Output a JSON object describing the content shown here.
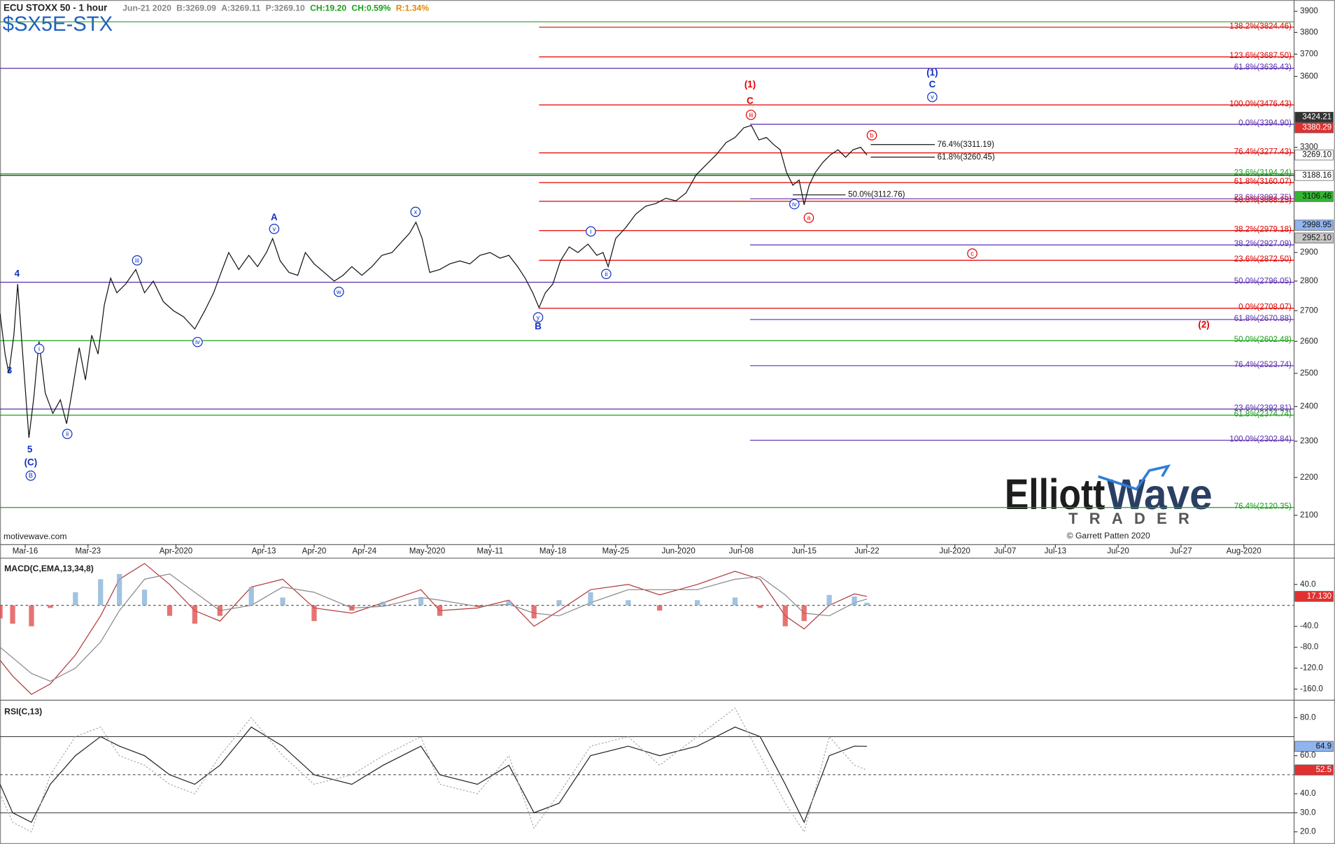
{
  "chart_data": [
    {
      "type": "line",
      "title": "ECU STOXX 50 - 1 hour",
      "subtitle": "$SX5E-STX",
      "quote": [
        {
          "text": "Jun-21 2020",
          "color": "#888"
        },
        {
          "text": "B:3269.09",
          "color": "#888"
        },
        {
          "text": "A:3269.11",
          "color": "#888"
        },
        {
          "text": "P:3269.10",
          "color": "#888"
        },
        {
          "text": "CH:19.20",
          "color": "#1aa01a"
        },
        {
          "text": "CH:0.59%",
          "color": "#1aa01a"
        },
        {
          "text": "R:1.34%",
          "color": "#e08a00"
        }
      ],
      "source": "motivewave.com",
      "logo": {
        "word1": "Elliott",
        "word2": "Wave",
        "sub": "TRADER",
        "credit": "© Garrett Patten 2020"
      },
      "log_scale": true,
      "color": "#111",
      "xlim": [
        -2,
        101
      ],
      "xticks": [
        {
          "value": 0,
          "label": "Mar-16"
        },
        {
          "value": 5,
          "label": "Mar-23"
        },
        {
          "value": 12,
          "label": "Apr-2020"
        },
        {
          "value": 19,
          "label": "Apr-13"
        },
        {
          "value": 23,
          "label": "Apr-20"
        },
        {
          "value": 27,
          "label": "Apr-24"
        },
        {
          "value": 32,
          "label": "May-2020"
        },
        {
          "value": 37,
          "label": "May-11"
        },
        {
          "value": 42,
          "label": "May-18"
        },
        {
          "value": 47,
          "label": "May-25"
        },
        {
          "value": 52,
          "label": "Jun-2020"
        },
        {
          "value": 57,
          "label": "Jun-08"
        },
        {
          "value": 62,
          "label": "Jun-15"
        },
        {
          "value": 67,
          "label": "Jun-22"
        },
        {
          "value": 74,
          "label": "Jul-2020"
        },
        {
          "value": 78,
          "label": "Jul-07"
        },
        {
          "value": 82,
          "label": "Jul-13"
        },
        {
          "value": 87,
          "label": "Jul-20"
        },
        {
          "value": 92,
          "label": "Jul-27"
        },
        {
          "value": 97,
          "label": "Aug-2020"
        }
      ],
      "ylim": [
        2026,
        3938
      ],
      "yticks": [
        2100,
        2200,
        2300,
        2400,
        2500,
        2600,
        2700,
        2800,
        2900,
        3300,
        3600,
        3700,
        3800,
        3900
      ],
      "x": [
        -2,
        -1.6,
        -1.3,
        -0.9,
        -0.6,
        -0.2,
        0.3,
        0.7,
        1.1,
        1.6,
        2.2,
        2.8,
        3.3,
        3.8,
        4.3,
        4.8,
        5.3,
        5.8,
        6.3,
        6.8,
        7.3,
        8,
        8.8,
        9.5,
        10.2,
        11,
        11.8,
        12.6,
        13.5,
        14.3,
        15,
        15.6,
        16.2,
        17,
        17.8,
        18.5,
        19.2,
        19.7,
        20.3,
        21,
        21.7,
        22.3,
        23,
        23.8,
        24.6,
        25.3,
        26,
        26.8,
        27.6,
        28.4,
        29.2,
        30,
        30.6,
        31.1,
        31.6,
        32.2,
        33,
        33.8,
        34.6,
        35.4,
        36.2,
        37,
        37.8,
        38.5,
        39.2,
        39.8,
        40.4,
        40.9,
        41.4,
        42,
        42.6,
        43.3,
        44,
        44.8,
        45.5,
        46,
        46.4,
        47,
        47.8,
        48.6,
        49.4,
        50.2,
        51,
        51.8,
        52.6,
        53.4,
        54.2,
        55,
        55.8,
        56.5,
        57.2,
        57.8,
        58.4,
        59,
        59.6,
        60.1,
        60.6,
        61.1,
        61.6,
        62,
        62.4,
        62.9,
        63.5,
        64.1,
        64.7,
        65.3,
        65.9,
        66.5,
        67
      ],
      "values": [
        2690,
        2560,
        2500,
        2620,
        2790,
        2560,
        2310,
        2430,
        2600,
        2440,
        2380,
        2420,
        2350,
        2460,
        2580,
        2480,
        2620,
        2560,
        2720,
        2810,
        2760,
        2790,
        2840,
        2760,
        2800,
        2730,
        2700,
        2680,
        2640,
        2700,
        2760,
        2830,
        2900,
        2840,
        2890,
        2850,
        2900,
        2950,
        2870,
        2830,
        2820,
        2900,
        2860,
        2830,
        2800,
        2820,
        2850,
        2820,
        2850,
        2890,
        2900,
        2940,
        2970,
        3010,
        2950,
        2830,
        2840,
        2860,
        2870,
        2860,
        2890,
        2900,
        2880,
        2890,
        2850,
        2810,
        2760,
        2710,
        2760,
        2790,
        2870,
        2920,
        2900,
        2930,
        2890,
        2900,
        2850,
        2950,
        2990,
        3040,
        3070,
        3080,
        3100,
        3090,
        3120,
        3190,
        3230,
        3270,
        3320,
        3340,
        3380,
        3390,
        3330,
        3340,
        3310,
        3290,
        3200,
        3150,
        3170,
        3075,
        3150,
        3200,
        3240,
        3270,
        3290,
        3260,
        3290,
        3300,
        3269.1
      ],
      "hlines": [
        {
          "value": 3850,
          "color": "#2a9a2a"
        }
      ],
      "fib_levels": [
        {
          "label": "138.2%(3824.46)",
          "value": 3824.46,
          "color": "#e00000",
          "x0": 40.9
        },
        {
          "label": "123.6%(3687.50)",
          "value": 3687.5,
          "color": "#e00000",
          "x0": 40.9
        },
        {
          "label": "61.8%(3636.43)",
          "value": 3636.43,
          "color": "#5a2db0"
        },
        {
          "label": "100.0%(3476.43)",
          "value": 3476.43,
          "color": "#e00000",
          "x0": 40.9
        },
        {
          "label": "0.0%(3394.90)",
          "value": 3394.9,
          "color": "#5a2db0",
          "x0": 57.7
        },
        {
          "label": "76.4%(3311.19)",
          "value": 3311.19,
          "color": "#111",
          "x0": 67.3,
          "x1": 72.4
        },
        {
          "label": "76.4%(3277.43)",
          "value": 3277.43,
          "color": "#e00000",
          "x0": 40.9
        },
        {
          "label": "61.8%(3260.45)",
          "value": 3260.45,
          "color": "#111",
          "x0": 67.3,
          "x1": 72.4
        },
        {
          "label": "23.6%(3194.24)",
          "value": 3194.24,
          "color": "#1aa01a"
        },
        {
          "label": "61.8%(3160.07)",
          "value": 3160.07,
          "color": "#e00000",
          "x0": 40.9
        },
        {
          "label": "50.0%(3112.76)",
          "value": 3112.76,
          "color": "#111",
          "x0": 61.1,
          "x1": 65.3
        },
        {
          "label": "23.6%(3097.75)",
          "value": 3097.75,
          "color": "#5a2db0",
          "x0": 57.7
        },
        {
          "label": "50.0%(3088.25)",
          "value": 3088.25,
          "color": "#e00000",
          "x0": 40.9
        },
        {
          "label": "38.2%(2979.18)",
          "value": 2979.18,
          "color": "#e00000",
          "x0": 40.9
        },
        {
          "label": "38.2%(2927.09)",
          "value": 2927.09,
          "color": "#5a2db0",
          "x0": 57.7
        },
        {
          "label": "23.6%(2872.50)",
          "value": 2872.5,
          "color": "#e00000",
          "x0": 40.9
        },
        {
          "label": "50.0%(2796.05)",
          "value": 2796.05,
          "color": "#5a2db0"
        },
        {
          "label": "0.0%(2708.07)",
          "value": 2708.07,
          "color": "#e00000",
          "x0": 40.9
        },
        {
          "label": "61.8%(2670.88)",
          "value": 2670.88,
          "color": "#5a2db0",
          "x0": 57.7
        },
        {
          "label": "50.0%(2602.48)",
          "value": 2602.48,
          "color": "#1aa01a"
        },
        {
          "label": "76.4%(2523.74)",
          "value": 2523.74,
          "color": "#5a2db0",
          "x0": 57.7
        },
        {
          "label": "23.6%(2392.81)",
          "value": 2392.81,
          "color": "#5a2db0"
        },
        {
          "label": "61.8%(2374.74)",
          "value": 2374.74,
          "color": "#1aa01a"
        },
        {
          "label": "100.0%(2302.84)",
          "value": 2302.84,
          "color": "#5a2db0",
          "x0": 57.7
        },
        {
          "label": "76.4%(2120.35)",
          "value": 2120.35,
          "color": "#1aa01a"
        }
      ],
      "price_tags": [
        {
          "label": "3424.21",
          "value": 3424.21,
          "bg": "#333",
          "fg": "#fff"
        },
        {
          "label": "3380.29",
          "value": 3380.29,
          "bg": "#e03030",
          "fg": "#fff"
        },
        {
          "label": "3269.10",
          "value": 3269.1,
          "bg": "#fff",
          "fg": "#111"
        },
        {
          "label": "3188.16",
          "value": 3188.16,
          "bg": "#fff",
          "fg": "#111",
          "line": true
        },
        {
          "label": "3106.46",
          "value": 3106.46,
          "bg": "#33b533",
          "fg": "#111"
        },
        {
          "label": "2998.95",
          "value": 2998.95,
          "bg": "#8fb4ee",
          "fg": "#111"
        },
        {
          "label": "2952.10",
          "value": 2952.1,
          "bg": "#c8c8c8",
          "fg": "#111"
        }
      ],
      "annotations": [
        {
          "text": "(1)",
          "color": "#e00000"
        },
        {
          "text": "C",
          "color": "#e00000"
        },
        {
          "text": "iii",
          "color": "#e00000",
          "circled": true
        },
        {
          "text": "b",
          "color": "#e00000",
          "circled": true
        },
        {
          "text": "a",
          "color": "#e00000",
          "circled": true
        },
        {
          "text": "c",
          "color": "#e00000",
          "circled": true
        },
        {
          "text": "(2)",
          "color": "#e00000"
        },
        {
          "text": "(1)",
          "color": "#1030c0"
        },
        {
          "text": "C",
          "color": "#1030c0"
        },
        {
          "text": "v",
          "color": "#1030c0",
          "circled": true
        },
        {
          "text": "A",
          "color": "#1030c0"
        },
        {
          "text": "v",
          "color": "#1030c0",
          "circled": true
        },
        {
          "text": "x",
          "color": "#1030c0",
          "circled": true
        },
        {
          "text": "iii",
          "color": "#1030c0",
          "circled": true
        },
        {
          "text": "w",
          "color": "#1030c0",
          "circled": true
        },
        {
          "text": "iv",
          "color": "#1030c0",
          "circled": true
        },
        {
          "text": "y",
          "color": "#1030c0",
          "circled": true
        },
        {
          "text": "B",
          "color": "#1030c0"
        },
        {
          "text": "i",
          "color": "#1030c0",
          "circled": true
        },
        {
          "text": "ii",
          "color": "#1030c0",
          "circled": true
        },
        {
          "text": "iv",
          "color": "#1030c0",
          "circled": true
        },
        {
          "text": "i",
          "color": "#1030c0",
          "circled": true
        },
        {
          "text": "ii",
          "color": "#1030c0",
          "circled": true
        },
        {
          "text": "4",
          "color": "#1030c0"
        },
        {
          "text": "3",
          "color": "#1030c0"
        },
        {
          "text": "5",
          "color": "#1030c0"
        },
        {
          "text": "(C)",
          "color": "#1030c0"
        },
        {
          "text": "B",
          "color": "#1030c0",
          "circled": true
        }
      ]
    },
    {
      "type": "line",
      "title": "MACD(C,EMA,13,34,8)",
      "xlim": [
        -2,
        101
      ],
      "ylim": [
        -178,
        87
      ],
      "yticks": [
        {
          "value": 40,
          "label": "40.0"
        },
        {
          "value": -40,
          "label": "-40.0"
        },
        {
          "value": -80,
          "label": "-80.0"
        },
        {
          "value": -120,
          "label": "-120.0"
        },
        {
          "value": -160,
          "label": "-160.0"
        }
      ],
      "levels": [
        {
          "value": 0,
          "dashed": true
        }
      ],
      "tags": [
        {
          "value": 17.13,
          "label": "17.130",
          "bg": "#e03030",
          "fg": "#fff"
        }
      ],
      "x": [
        -2,
        -1,
        0.5,
        2,
        4,
        6,
        7.5,
        9.5,
        11.5,
        13.5,
        15.5,
        18,
        20.5,
        23,
        26,
        28.5,
        31.5,
        33,
        36,
        38.5,
        40.5,
        42.5,
        45,
        48,
        50.5,
        53.5,
        56.5,
        58.5,
        60.5,
        62,
        64,
        66,
        67
      ],
      "series": [
        {
          "color": "#b03a3a",
          "values": [
            -105,
            -135,
            -170,
            -150,
            -95,
            -20,
            50,
            80,
            40,
            -10,
            -30,
            35,
            50,
            -5,
            -15,
            5,
            30,
            -10,
            -5,
            10,
            -40,
            -10,
            30,
            40,
            20,
            40,
            65,
            50,
            -20,
            -45,
            0,
            22,
            17.13
          ]
        },
        {
          "color": "#888",
          "values": [
            -80,
            -100,
            -130,
            -145,
            -120,
            -70,
            -10,
            50,
            60,
            25,
            -10,
            0,
            35,
            25,
            -5,
            -2,
            15,
            10,
            -2,
            2,
            -15,
            -20,
            5,
            30,
            30,
            30,
            50,
            55,
            20,
            -15,
            -20,
            5,
            12
          ]
        },
        {
          "style": "bar",
          "color": "#8ab4d8",
          "neg_color": "#e05050",
          "values": [
            -25,
            -35,
            -40,
            -5,
            25,
            50,
            60,
            30,
            -20,
            -35,
            -20,
            35,
            15,
            -30,
            -10,
            7,
            15,
            -20,
            -3,
            8,
            -25,
            10,
            25,
            10,
            -10,
            10,
            15,
            -5,
            -40,
            -30,
            20,
            17,
            5
          ]
        }
      ]
    },
    {
      "type": "line",
      "title": "RSI(C,13)",
      "xlim": [
        -2,
        101
      ],
      "ylim": [
        13.6,
        87.8
      ],
      "yticks": [
        {
          "value": 80,
          "label": "80.0"
        },
        {
          "value": 60,
          "label": "60.0"
        },
        {
          "value": 40,
          "label": "40.0"
        },
        {
          "value": 30,
          "label": "30.0"
        },
        {
          "value": 20,
          "label": "20.0"
        }
      ],
      "levels": [
        {
          "value": 70
        },
        {
          "value": 50,
          "dashed": true
        },
        {
          "value": 30
        }
      ],
      "tags": [
        {
          "value": 64.9,
          "label": "64.9",
          "bg": "#8fb4ee",
          "fg": "#111"
        },
        {
          "value": 52.5,
          "label": "52.5",
          "bg": "#e03030",
          "fg": "#fff"
        }
      ],
      "x": [
        -2,
        -1,
        0.5,
        2,
        4,
        6,
        7.5,
        9.5,
        11.5,
        13.5,
        15.5,
        18,
        20.5,
        23,
        26,
        28.5,
        31.5,
        33,
        36,
        38.5,
        40.5,
        42.5,
        45,
        48,
        50.5,
        53.5,
        56.5,
        58.5,
        60.5,
        62,
        64,
        66,
        67
      ],
      "series": [
        {
          "color": "#222",
          "values": [
            45,
            30,
            25,
            45,
            60,
            70,
            65,
            60,
            50,
            45,
            55,
            75,
            65,
            50,
            45,
            55,
            65,
            50,
            45,
            55,
            30,
            35,
            60,
            65,
            60,
            65,
            75,
            70,
            45,
            25,
            60,
            65,
            64.9
          ]
        },
        {
          "color": "#aaa",
          "dashed": true,
          "values": [
            40,
            25,
            20,
            50,
            70,
            75,
            60,
            55,
            45,
            40,
            60,
            80,
            60,
            45,
            50,
            60,
            70,
            45,
            40,
            60,
            22,
            40,
            65,
            70,
            55,
            70,
            85,
            60,
            35,
            20,
            70,
            55,
            52.5
          ]
        }
      ]
    }
  ]
}
